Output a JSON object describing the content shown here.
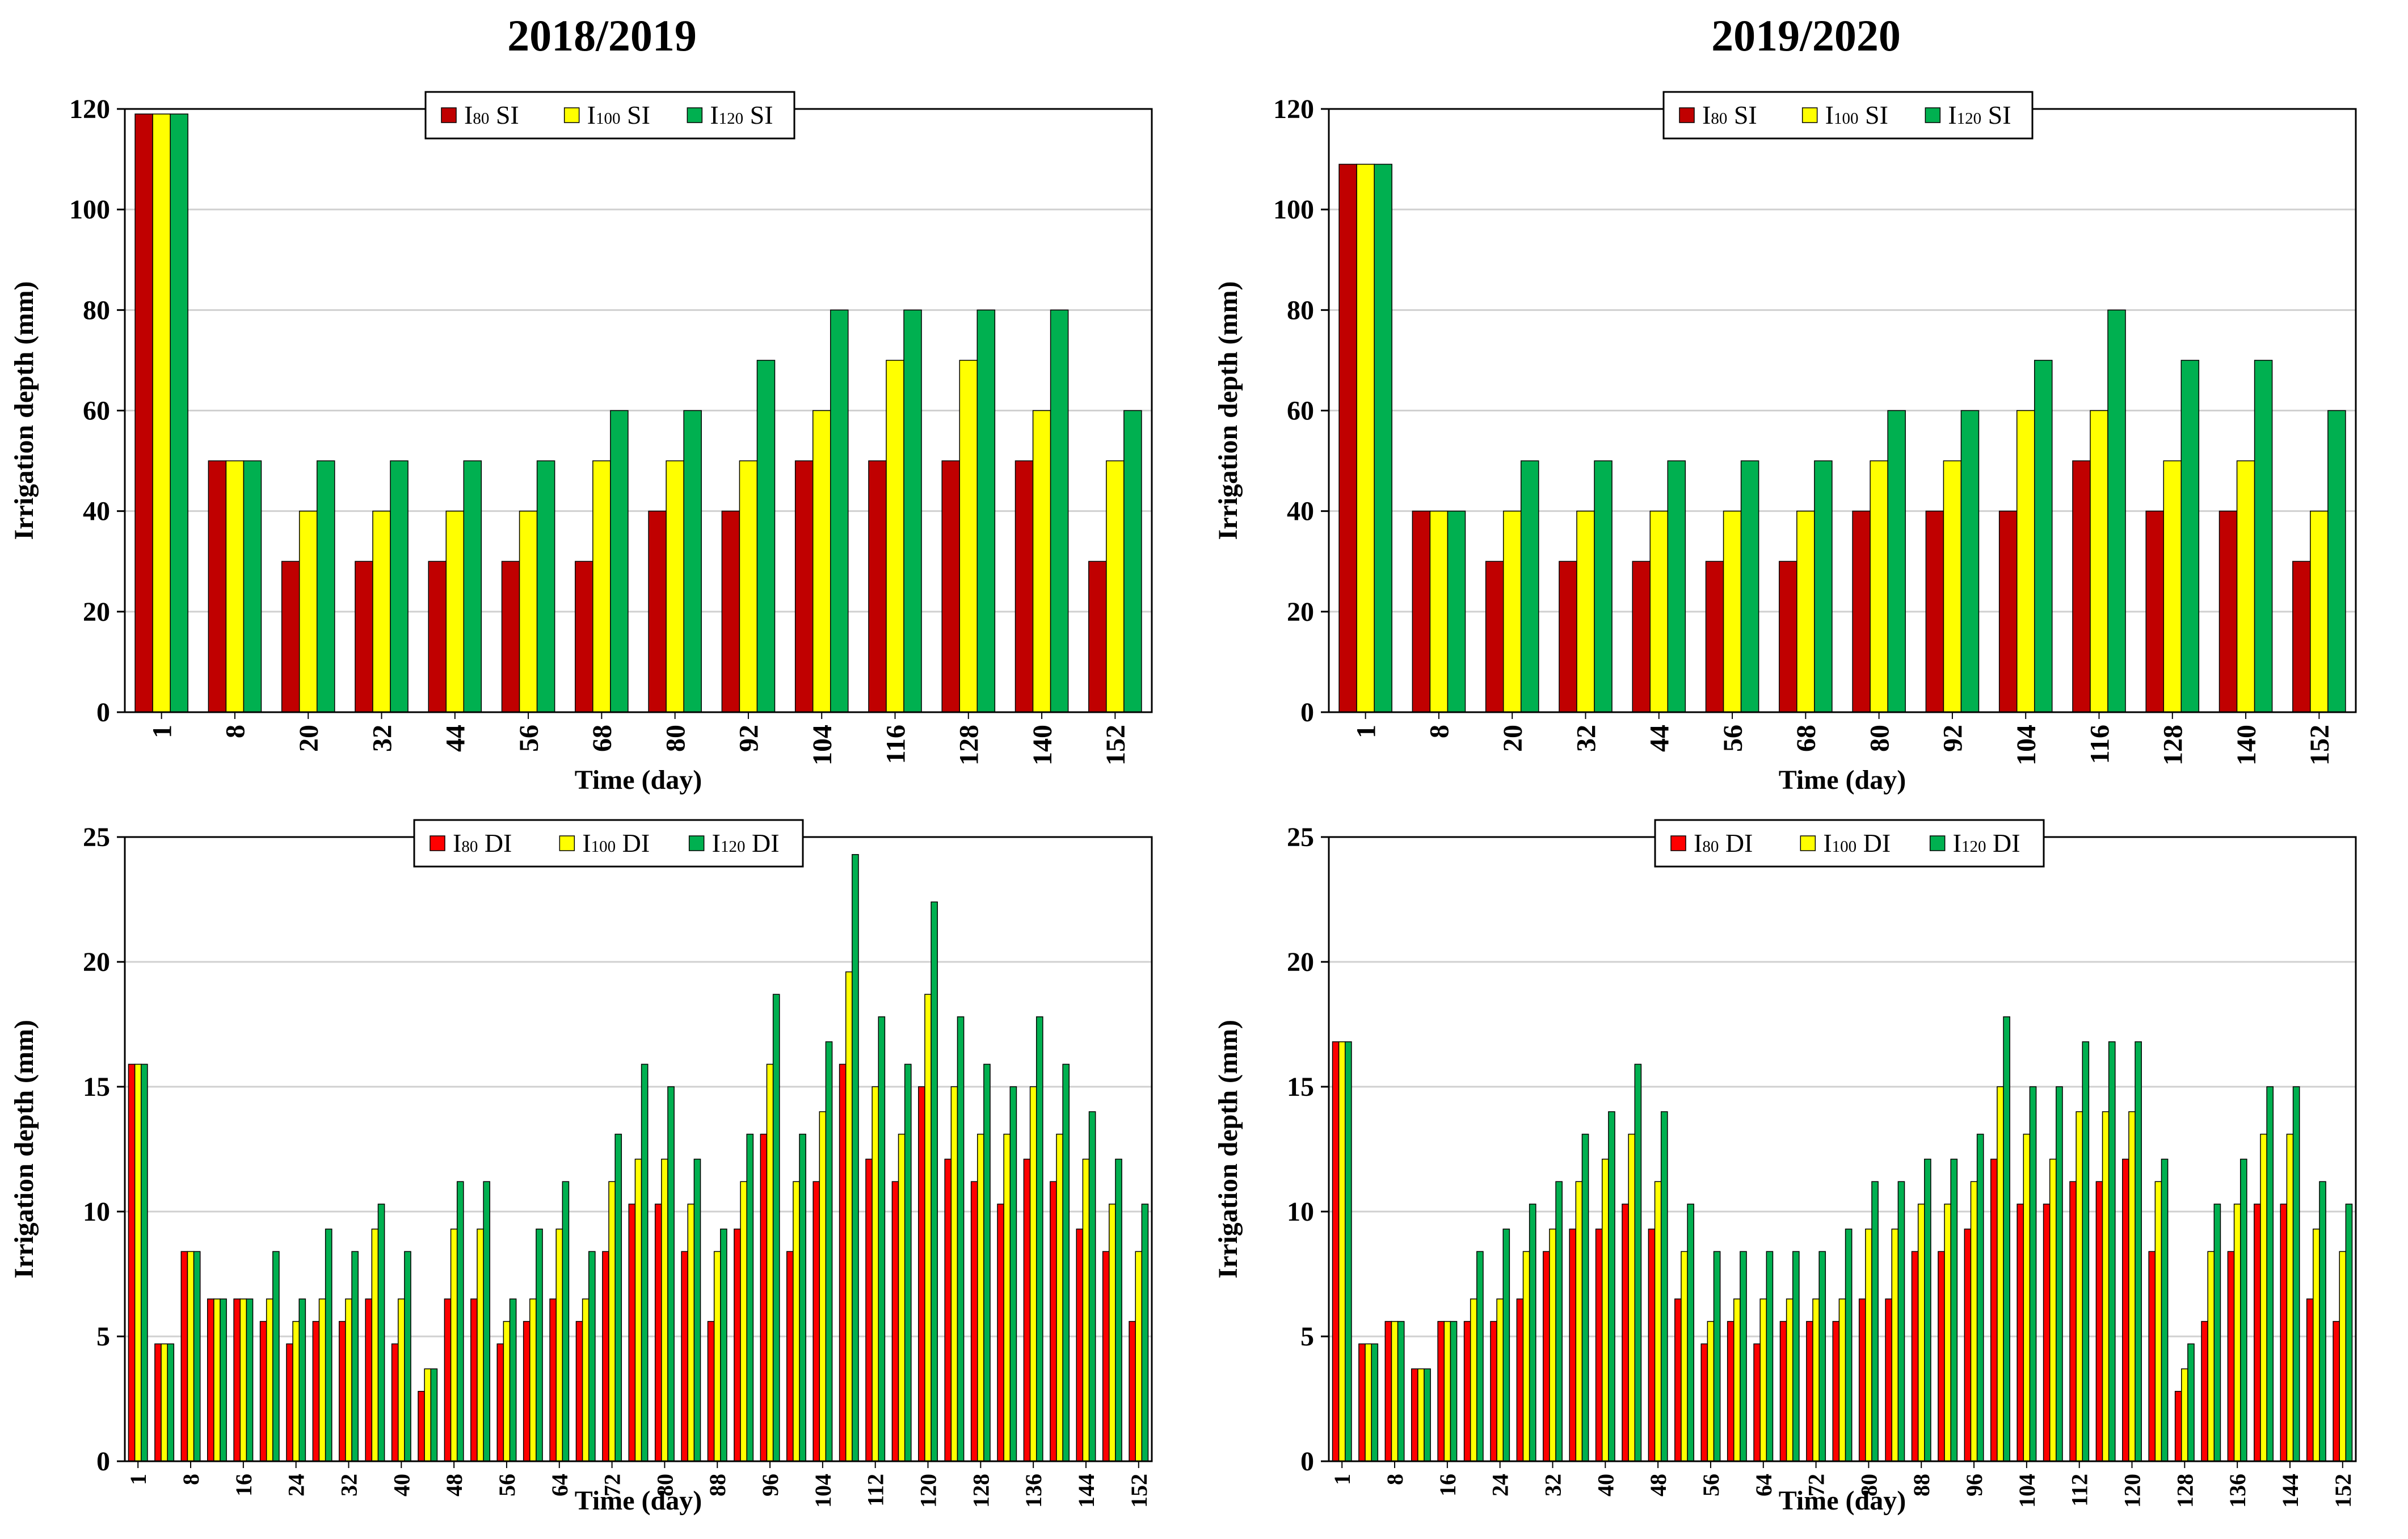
{
  "column_titles": [
    "2018/2019",
    "2019/2020"
  ],
  "colors": {
    "red_si": "#c00000",
    "red_di": "#ff0000",
    "yellow": "#ffff00",
    "green": "#00b050"
  },
  "chart_data": [
    {
      "type": "bar",
      "title": "2018/2019",
      "xlabel": "Time (day)",
      "ylabel": "Irrigation depth (mm)",
      "ylim": [
        0,
        120
      ],
      "yticks": [
        "0",
        "20",
        "40",
        "60",
        "80",
        "100",
        "120"
      ],
      "grid": true,
      "legend_position": "top-center",
      "categories": [
        "1",
        "8",
        "20",
        "32",
        "44",
        "56",
        "68",
        "80",
        "92",
        "104",
        "116",
        "128",
        "140",
        "152"
      ],
      "series": [
        {
          "name": "I80 SI",
          "label_main": "I",
          "label_sub": "80",
          "label_suffix": " SI",
          "color": "#c00000",
          "values": [
            119,
            50,
            30,
            30,
            30,
            30,
            30,
            40,
            40,
            50,
            50,
            50,
            50,
            30
          ]
        },
        {
          "name": "I100 SI",
          "label_main": "I",
          "label_sub": "100",
          "label_suffix": " SI",
          "color": "#ffff00",
          "values": [
            119,
            50,
            40,
            40,
            40,
            40,
            50,
            50,
            50,
            60,
            70,
            70,
            60,
            50
          ]
        },
        {
          "name": "I120 SI",
          "label_main": "I",
          "label_sub": "120",
          "label_suffix": " SI",
          "color": "#00b050",
          "values": [
            119,
            50,
            50,
            50,
            50,
            50,
            60,
            60,
            70,
            80,
            80,
            80,
            80,
            60
          ]
        }
      ]
    },
    {
      "type": "bar",
      "title": "2019/2020",
      "xlabel": "Time (day)",
      "ylabel": "Irrigation depth (mm)",
      "ylim": [
        0,
        120
      ],
      "yticks": [
        "0",
        "20",
        "40",
        "60",
        "80",
        "100",
        "120"
      ],
      "grid": true,
      "legend_position": "top-center",
      "categories": [
        "1",
        "8",
        "20",
        "32",
        "44",
        "56",
        "68",
        "80",
        "92",
        "104",
        "116",
        "128",
        "140",
        "152"
      ],
      "series": [
        {
          "name": "I80 SI",
          "label_main": "I",
          "label_sub": "80",
          "label_suffix": " SI",
          "color": "#c00000",
          "values": [
            109,
            40,
            30,
            30,
            30,
            30,
            30,
            40,
            40,
            40,
            50,
            40,
            40,
            30
          ]
        },
        {
          "name": "I100 SI",
          "label_main": "I",
          "label_sub": "100",
          "label_suffix": " SI",
          "color": "#ffff00",
          "values": [
            109,
            40,
            40,
            40,
            40,
            40,
            40,
            50,
            50,
            60,
            60,
            50,
            50,
            40
          ]
        },
        {
          "name": "I120 SI",
          "label_main": "I",
          "label_sub": "120",
          "label_suffix": " SI",
          "color": "#00b050",
          "values": [
            109,
            40,
            50,
            50,
            50,
            50,
            50,
            60,
            60,
            70,
            80,
            70,
            70,
            60
          ]
        }
      ]
    },
    {
      "type": "bar",
      "title": "2018/2019",
      "xlabel": "Time (day)",
      "ylabel": "Irrigation depth (mm)",
      "ylim": [
        0,
        25
      ],
      "yticks": [
        "0",
        "5",
        "10",
        "15",
        "20",
        "25"
      ],
      "grid": true,
      "legend_position": "top-center",
      "categories": [
        "1",
        "",
        "8",
        "",
        "16",
        "",
        "24",
        "",
        "32",
        "",
        "40",
        "",
        "48",
        "",
        "56",
        "",
        "64",
        "",
        "72",
        "",
        "80",
        "",
        "88",
        "",
        "96",
        "",
        "104",
        "",
        "112",
        "",
        "120",
        "",
        "128",
        "",
        "136",
        "",
        "144",
        "",
        "152"
      ],
      "series": [
        {
          "name": "I80 DI",
          "label_main": "I",
          "label_sub": "80",
          "label_suffix": " DI",
          "color": "#ff0000",
          "values": [
            15.9,
            4.7,
            8.4,
            6.5,
            6.5,
            5.6,
            4.7,
            5.6,
            5.6,
            6.5,
            4.7,
            2.8,
            6.5,
            6.5,
            4.7,
            5.6,
            6.5,
            5.6,
            8.4,
            10.3,
            10.3,
            8.4,
            5.6,
            9.3,
            13.1,
            8.4,
            11.2,
            15.9,
            12.1,
            11.2,
            15.0,
            12.1,
            11.2,
            10.3,
            12.1,
            11.2,
            9.3,
            8.4,
            5.6
          ]
        },
        {
          "name": "I100 DI",
          "label_main": "I",
          "label_sub": "100",
          "label_suffix": " DI",
          "color": "#ffff00",
          "values": [
            15.9,
            4.7,
            8.4,
            6.5,
            6.5,
            6.5,
            5.6,
            6.5,
            6.5,
            9.3,
            6.5,
            3.7,
            9.3,
            9.3,
            5.6,
            6.5,
            9.3,
            6.5,
            11.2,
            12.1,
            12.1,
            10.3,
            8.4,
            11.2,
            15.9,
            11.2,
            14.0,
            19.6,
            15.0,
            13.1,
            18.7,
            15.0,
            13.1,
            13.1,
            15.0,
            13.1,
            12.1,
            10.3,
            8.4
          ]
        },
        {
          "name": "I120 DI",
          "label_main": "I",
          "label_sub": "120",
          "label_suffix": " DI",
          "color": "#00b050",
          "values": [
            15.9,
            4.7,
            8.4,
            6.5,
            6.5,
            8.4,
            6.5,
            9.3,
            8.4,
            10.3,
            8.4,
            3.7,
            11.2,
            11.2,
            6.5,
            9.3,
            11.2,
            8.4,
            13.1,
            15.9,
            15.0,
            12.1,
            9.3,
            13.1,
            18.7,
            13.1,
            16.8,
            24.3,
            17.8,
            15.9,
            22.4,
            17.8,
            15.9,
            15.0,
            17.8,
            15.9,
            14.0,
            12.1,
            10.3
          ]
        }
      ]
    },
    {
      "type": "bar",
      "title": "2019/2020",
      "xlabel": "Time (day)",
      "ylabel": "Irrigation depth (mm)",
      "ylim": [
        0,
        25
      ],
      "yticks": [
        "0",
        "5",
        "10",
        "15",
        "20",
        "25"
      ],
      "grid": true,
      "legend_position": "top-center",
      "categories": [
        "1",
        "",
        "8",
        "",
        "16",
        "",
        "24",
        "",
        "32",
        "",
        "40",
        "",
        "48",
        "",
        "56",
        "",
        "64",
        "",
        "72",
        "",
        "80",
        "",
        "88",
        "",
        "96",
        "",
        "104",
        "",
        "112",
        "",
        "120",
        "",
        "128",
        "",
        "136",
        "",
        "144",
        "",
        "152"
      ],
      "series": [
        {
          "name": "I80 DI",
          "label_main": "I",
          "label_sub": "80",
          "label_suffix": " DI",
          "color": "#ff0000",
          "values": [
            16.8,
            4.7,
            5.6,
            3.7,
            5.6,
            5.6,
            5.6,
            6.5,
            8.4,
            9.3,
            9.3,
            10.3,
            9.3,
            6.5,
            4.7,
            5.6,
            4.7,
            5.6,
            5.6,
            5.6,
            6.5,
            6.5,
            8.4,
            8.4,
            9.3,
            12.1,
            10.3,
            10.3,
            11.2,
            11.2,
            12.1,
            8.4,
            2.8,
            5.6,
            8.4,
            10.3,
            10.3,
            6.5,
            5.6
          ]
        },
        {
          "name": "I100 DI",
          "label_main": "I",
          "label_sub": "100",
          "label_suffix": " DI",
          "color": "#ffff00",
          "values": [
            16.8,
            4.7,
            5.6,
            3.7,
            5.6,
            6.5,
            6.5,
            8.4,
            9.3,
            11.2,
            12.1,
            13.1,
            11.2,
            8.4,
            5.6,
            6.5,
            6.5,
            6.5,
            6.5,
            6.5,
            9.3,
            9.3,
            10.3,
            10.3,
            11.2,
            15.0,
            13.1,
            12.1,
            14.0,
            14.0,
            14.0,
            11.2,
            3.7,
            8.4,
            10.3,
            13.1,
            13.1,
            9.3,
            8.4
          ]
        },
        {
          "name": "I120 DI",
          "label_main": "I",
          "label_sub": "120",
          "label_suffix": " DI",
          "color": "#00b050",
          "values": [
            16.8,
            4.7,
            5.6,
            3.7,
            5.6,
            8.4,
            9.3,
            10.3,
            11.2,
            13.1,
            14.0,
            15.9,
            14.0,
            10.3,
            8.4,
            8.4,
            8.4,
            8.4,
            8.4,
            9.3,
            11.2,
            11.2,
            12.1,
            12.1,
            13.1,
            17.8,
            15.0,
            15.0,
            16.8,
            16.8,
            16.8,
            12.1,
            4.7,
            10.3,
            12.1,
            15.0,
            15.0,
            11.2,
            10.3
          ]
        }
      ]
    }
  ]
}
